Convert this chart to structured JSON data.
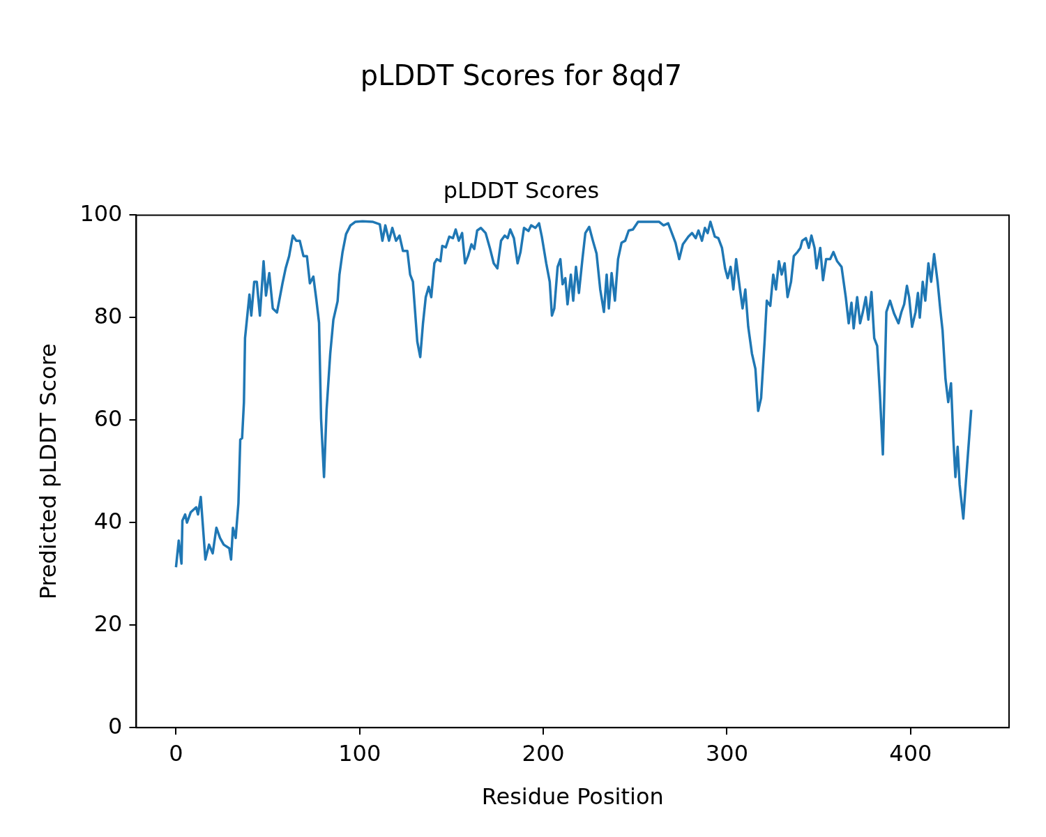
{
  "chart_data": {
    "type": "line",
    "title": "pLDDT Scores for 8qd7",
    "subtitle": "pLDDT Scores",
    "xlabel": "Residue Position",
    "ylabel": "Predicted pLDDT Score",
    "color": "#1f77b4",
    "grid": false,
    "legend": false,
    "marker": "none",
    "line_style": "solid",
    "xlim": [
      -21.6,
      453.6
    ],
    "xticks": [
      0,
      100,
      200,
      300,
      400
    ],
    "ylim": [
      0,
      100
    ],
    "yticks": [
      0,
      20,
      40,
      60,
      80,
      100
    ],
    "x": [
      0,
      1.5,
      3,
      3.5,
      5,
      6,
      8,
      11,
      12,
      13.5,
      16,
      18,
      20,
      22,
      24,
      26,
      29,
      30,
      31,
      32.5,
      34,
      35,
      36,
      37,
      37.6,
      40,
      41,
      42.6,
      44,
      45.7,
      47.7,
      49,
      50.8,
      52.7,
      55,
      58,
      59.7,
      61.6,
      63.6,
      65.5,
      67.4,
      69.4,
      71.3,
      72.9,
      74.8,
      76.4,
      77.9,
      79,
      80.6,
      82,
      84,
      85.7,
      88,
      89,
      90.7,
      92.6,
      95,
      97.7,
      101.6,
      107,
      111,
      112.4,
      114,
      116,
      117.8,
      119.8,
      121.7,
      123.6,
      126,
      127.5,
      129,
      131.4,
      133,
      134.5,
      136,
      137.6,
      139,
      140.7,
      142,
      144,
      145,
      146.9,
      148.8,
      150.8,
      152.3,
      154,
      155.8,
      157.4,
      159,
      160.9,
      162.4,
      164,
      166,
      168.6,
      170.9,
      173,
      175,
      177,
      179,
      180.6,
      182,
      184,
      186,
      187.6,
      189.5,
      191.9,
      193.4,
      195.7,
      197.7,
      199.2,
      201.6,
      203.5,
      204.7,
      206,
      207.8,
      209.3,
      210.5,
      212,
      213.2,
      215,
      216.3,
      217.8,
      219.4,
      221.3,
      222.9,
      225,
      227,
      229,
      231,
      233,
      234.5,
      235.7,
      237.2,
      239,
      240.7,
      242.6,
      244.6,
      246.5,
      248.8,
      251.6,
      258.5,
      263,
      265.5,
      268,
      270,
      272,
      274,
      276,
      279,
      281,
      283,
      284.5,
      286.4,
      288,
      289.5,
      291,
      293.4,
      295.3,
      297.3,
      299,
      300.4,
      302,
      303.5,
      305,
      307,
      308.5,
      310,
      311.6,
      313.6,
      315.5,
      317,
      318.6,
      320.5,
      321.7,
      323.6,
      325.2,
      326.7,
      328.3,
      329.8,
      331.4,
      333,
      334.9,
      336.4,
      338.4,
      340,
      341,
      343,
      344.6,
      346,
      347.7,
      348.8,
      350.8,
      352.3,
      354,
      356.2,
      358,
      360,
      362.4,
      364.7,
      366.3,
      367.8,
      369,
      370.9,
      372.5,
      374,
      375.6,
      377,
      378.7,
      380.2,
      381.8,
      383.3,
      384.9,
      386.8,
      388.8,
      391,
      393.4,
      395,
      396.5,
      398,
      399.2,
      400.8,
      402.7,
      404,
      405,
      406.6,
      408,
      409.7,
      411.2,
      412.8,
      414.7,
      416.3,
      417.4,
      419,
      420.5,
      422,
      423.3,
      424.4,
      425.6,
      426.7,
      428.7,
      430,
      433
    ],
    "values": [
      31.3,
      36.5,
      32,
      40.4,
      41.6,
      40,
      42,
      43,
      41.6,
      45,
      32.8,
      35.7,
      34,
      39,
      37,
      35.7,
      35,
      32.8,
      39,
      37,
      43.8,
      56.2,
      56.5,
      63.5,
      76,
      84.5,
      80.4,
      87,
      87,
      80.4,
      91,
      84.3,
      88.7,
      81.8,
      81,
      86.7,
      89.6,
      92,
      96,
      95,
      95,
      92,
      92,
      86.7,
      88,
      83.6,
      79,
      60.3,
      48.9,
      62,
      73,
      79.6,
      83.2,
      88.4,
      92.8,
      96.3,
      98,
      98.7,
      98.8,
      98.7,
      98.2,
      95,
      98,
      95,
      97.5,
      95,
      96,
      93,
      93,
      88.4,
      87,
      75.3,
      72.3,
      78.9,
      84,
      86,
      84,
      90.6,
      91.4,
      91,
      94,
      93.7,
      95.8,
      95.5,
      97.2,
      95,
      96.5,
      90.6,
      92,
      94.3,
      93.4,
      97,
      97.5,
      96.5,
      93.6,
      90.6,
      89.6,
      95,
      96,
      95.5,
      97.2,
      95.5,
      90.6,
      92.8,
      97.5,
      96.9,
      98,
      97.5,
      98.4,
      95.8,
      90.6,
      87,
      80.4,
      81.8,
      89.9,
      91.4,
      86.5,
      87.7,
      82.6,
      88.4,
      83.3,
      89.9,
      84.8,
      91.4,
      96.5,
      97.7,
      95,
      92.5,
      85.5,
      81.1,
      88.4,
      81.8,
      88.7,
      83.3,
      91.4,
      94.6,
      95,
      97,
      97.2,
      98.7,
      98.7,
      98.7,
      98,
      98.4,
      96.5,
      94.6,
      91.4,
      94.3,
      95.8,
      96.5,
      95.5,
      97,
      95,
      97.5,
      96.5,
      98.7,
      95.8,
      95.5,
      93.6,
      89.6,
      87.7,
      89.9,
      85.5,
      91.4,
      85.8,
      81.8,
      85.5,
      78.2,
      73,
      70,
      61.8,
      64.3,
      75.3,
      83.3,
      82.3,
      88.4,
      85.5,
      91,
      88.4,
      90.6,
      84,
      87,
      92,
      92.8,
      93.6,
      95,
      95.5,
      93.6,
      96,
      93.6,
      89.6,
      93.6,
      87.3,
      91.4,
      91.4,
      92.8,
      91,
      89.9,
      84,
      78.9,
      82.9,
      77.9,
      84,
      78.9,
      81.1,
      84,
      79.6,
      85,
      76,
      74.5,
      65,
      53.3,
      81.1,
      83.3,
      80.8,
      78.9,
      81.1,
      82.6,
      86.2,
      84,
      78.2,
      81.1,
      84.8,
      80,
      87,
      83.3,
      90.6,
      87,
      92.4,
      87,
      81.1,
      77.5,
      68,
      63.5,
      67.2,
      56.2,
      48.9,
      54.8,
      47.4,
      40.8,
      47.4,
      62
    ]
  }
}
